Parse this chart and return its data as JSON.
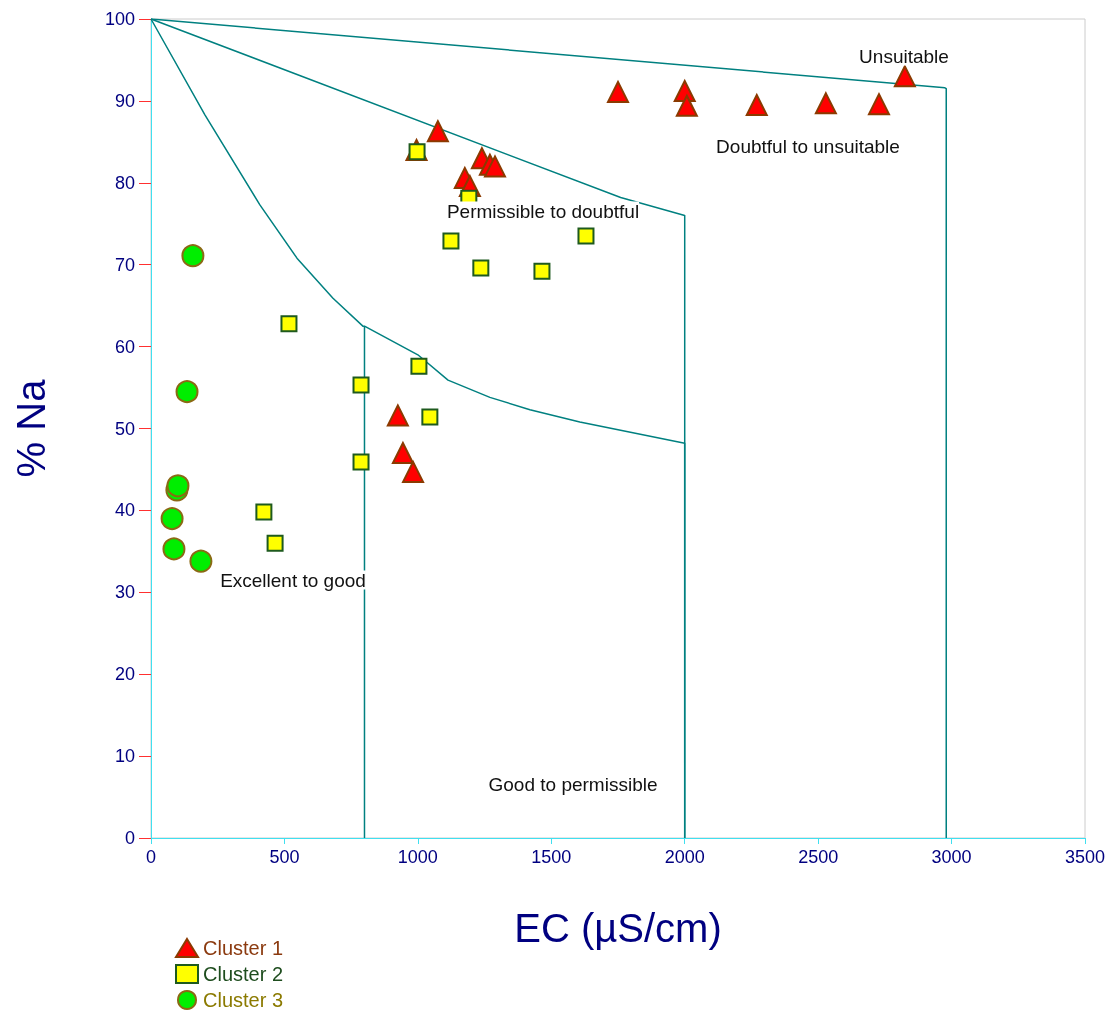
{
  "chart_data": {
    "type": "scatter",
    "xlabel": "EC (µS/cm)",
    "ylabel": "% Na",
    "xlim": [
      0,
      3500
    ],
    "xticks": [
      0,
      500,
      1000,
      1500,
      2000,
      2500,
      3000,
      3500
    ],
    "ylim": [
      0,
      100
    ],
    "yticks": [
      0,
      10,
      20,
      30,
      40,
      50,
      60,
      70,
      80,
      90,
      100
    ],
    "grid": false,
    "legend": "bottom left",
    "series": [
      {
        "name": "Cluster 1",
        "marker": "triangle",
        "color": "#ff0000",
        "x": [
          1750,
          2000,
          2008,
          2270,
          2529,
          2728,
          2825,
          1075,
          1240,
          1270,
          1289,
          1176,
          1195,
          995,
          925,
          944,
          982
        ],
        "values": [
          91.1,
          91.2,
          89.4,
          89.5,
          89.7,
          89.6,
          93.0,
          86.3,
          83.0,
          82.2,
          82.0,
          80.6,
          79.6,
          84.0,
          51.6,
          47.0,
          44.7
        ]
      },
      {
        "name": "Cluster 2",
        "marker": "square",
        "color": "#ffff00",
        "x": [
          997,
          1191,
          1124,
          1236,
          1465,
          1630,
          517,
          1004,
          787,
          1045,
          787,
          423,
          465
        ],
        "values": [
          83.8,
          78.1,
          72.9,
          69.6,
          69.2,
          73.5,
          62.8,
          57.6,
          55.3,
          51.4,
          45.9,
          39.8,
          36.0
        ]
      },
      {
        "name": "Cluster 3",
        "marker": "circle",
        "color": "#00ee00",
        "x": [
          157,
          135,
          97,
          101,
          79,
          86,
          187
        ],
        "values": [
          71.1,
          54.5,
          42.5,
          43.0,
          39.0,
          35.3,
          33.8
        ]
      },
      {
        "type": "line",
        "marker": "none",
        "color": "#008080",
        "x": [
          0,
          2975,
          2980,
          2980
        ],
        "values": [
          100,
          91.6,
          91.5,
          0
        ]
      },
      {
        "type": "line",
        "marker": "none",
        "color": "#008080",
        "x": [
          0,
          1760,
          2000,
          2000
        ],
        "values": [
          100,
          78.2,
          76,
          0
        ]
      },
      {
        "type": "line",
        "marker": "none",
        "color": "#008080",
        "x": [
          0,
          202,
          408,
          547,
          682,
          794,
          800,
          800
        ],
        "values": [
          100,
          88.3,
          77.3,
          70.8,
          65.9,
          62.5,
          62.5,
          0
        ]
      },
      {
        "type": "line",
        "marker": "none",
        "color": "#008080",
        "x": [
          800,
          1000,
          1113,
          1270,
          1420,
          1607,
          2000,
          2000
        ],
        "values": [
          62.5,
          59,
          55.9,
          53.8,
          52.3,
          50.8,
          48.2,
          0
        ]
      }
    ],
    "annotations": [
      "Unsuitable",
      "Doubtful to unsuitable",
      "Permissible to doubtful",
      "Excellent to good",
      "Good to permissible"
    ]
  }
}
